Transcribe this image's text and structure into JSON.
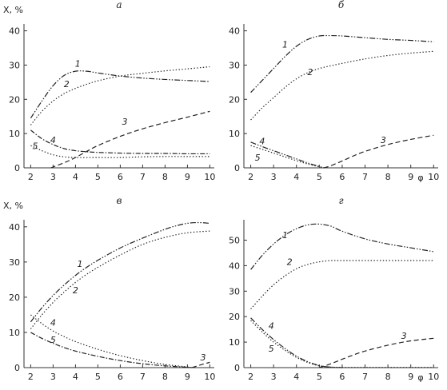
{
  "chart_data": [
    {
      "type": "line",
      "panel_label": "а",
      "ylabel": "X, %",
      "xlabel": "",
      "xlim": [
        1.7,
        10.2
      ],
      "ylim": [
        0,
        42
      ],
      "xticks": [
        2,
        3,
        4,
        5,
        6,
        7,
        8,
        9,
        10
      ],
      "yticks": [
        0,
        10,
        20,
        30,
        40
      ],
      "grid": false,
      "series": [
        {
          "name": "1",
          "style": "dashdotdot",
          "label_at": [
            4.1,
            30.5
          ],
          "x": [
            2,
            2.5,
            3,
            3.5,
            4,
            4.5,
            5,
            6,
            7,
            8,
            9,
            10
          ],
          "y": [
            14.5,
            19.5,
            24,
            27,
            28.2,
            28.2,
            27.7,
            26.8,
            26.2,
            25.8,
            25.5,
            25.2
          ]
        },
        {
          "name": "2",
          "style": "dotted",
          "label_at": [
            3.6,
            24.5
          ],
          "x": [
            2,
            2.5,
            3,
            3.5,
            4,
            4.5,
            5,
            6,
            7,
            8,
            9,
            10
          ],
          "y": [
            12.5,
            16.5,
            19.5,
            21.7,
            23.2,
            24.4,
            25.4,
            26.8,
            27.6,
            28.3,
            28.9,
            29.5
          ]
        },
        {
          "name": "3",
          "style": "dashed",
          "label_at": [
            6.2,
            13.5
          ],
          "x": [
            2.9,
            3.5,
            4,
            4.5,
            5,
            6,
            7,
            8,
            9,
            10
          ],
          "y": [
            0,
            1.5,
            3,
            4.8,
            6.5,
            9.2,
            11.4,
            13.2,
            14.8,
            16.5
          ]
        },
        {
          "name": "4",
          "style": "dashdot",
          "label_at": [
            3.0,
            8.2
          ],
          "x": [
            2,
            2.5,
            3,
            3.5,
            4,
            4.5,
            5,
            6,
            7,
            8,
            9,
            10
          ],
          "y": [
            11,
            8.5,
            6.8,
            5.6,
            5,
            4.7,
            4.5,
            4.3,
            4.2,
            4.2,
            4.1,
            4.1
          ]
        },
        {
          "name": "5",
          "style": "dotted",
          "label_at": [
            2.2,
            6.4
          ],
          "x": [
            2,
            2.5,
            3,
            3.5,
            4,
            5,
            6,
            7,
            8,
            9,
            10
          ],
          "y": [
            6.5,
            5,
            3.8,
            3.2,
            3.0,
            3.0,
            3.0,
            3.2,
            3.3,
            3.3,
            3.3
          ]
        }
      ]
    },
    {
      "type": "line",
      "panel_label": "б",
      "ylabel": "",
      "xlabel": "φ",
      "xlim": [
        1.7,
        10.2
      ],
      "ylim": [
        0,
        42
      ],
      "xticks": [
        2,
        3,
        4,
        5,
        6,
        7,
        8,
        9,
        10
      ],
      "yticks": [
        0,
        10,
        20,
        30,
        40
      ],
      "grid": false,
      "series": [
        {
          "name": "1",
          "style": "dashdotdot",
          "label_at": [
            3.5,
            36
          ],
          "x": [
            2,
            2.5,
            3,
            3.5,
            4,
            4.5,
            5,
            5.5,
            6,
            7,
            8,
            9,
            10
          ],
          "y": [
            22,
            25.5,
            29,
            32.5,
            35.5,
            37.5,
            38.5,
            38.6,
            38.5,
            38,
            37.5,
            37.2,
            36.8
          ]
        },
        {
          "name": "2",
          "style": "dotted",
          "label_at": [
            4.6,
            28
          ],
          "x": [
            2,
            2.5,
            3,
            3.5,
            4,
            4.5,
            5,
            5.5,
            6,
            7,
            8,
            9,
            10
          ],
          "y": [
            14,
            17.5,
            20.5,
            23.5,
            26,
            27.8,
            29,
            29.8,
            30.5,
            31.8,
            32.8,
            33.5,
            34
          ]
        },
        {
          "name": "3",
          "style": "dashed",
          "label_at": [
            7.8,
            8.2
          ],
          "x": [
            5.2,
            5.5,
            6,
            6.5,
            7,
            8,
            9,
            10
          ],
          "y": [
            0,
            0.6,
            2,
            3.5,
            4.8,
            6.8,
            8.3,
            9.5
          ]
        },
        {
          "name": "4",
          "style": "dashdotdot",
          "label_at": [
            2.5,
            7.8
          ],
          "x": [
            2,
            2.5,
            3,
            3.5,
            4,
            4.5,
            5,
            5.2
          ],
          "y": [
            7.5,
            6.2,
            5,
            3.8,
            2.6,
            1.4,
            0.4,
            0
          ]
        },
        {
          "name": "5",
          "style": "dotted",
          "label_at": [
            2.3,
            3.0
          ],
          "x": [
            2,
            2.5,
            3,
            3.5,
            4,
            4.5,
            5,
            5.2
          ],
          "y": [
            6.5,
            5.4,
            4.3,
            3.2,
            2.1,
            1.1,
            0.3,
            0
          ]
        }
      ]
    },
    {
      "type": "line",
      "panel_label": "в",
      "ylabel": "X, %",
      "xlabel": "",
      "xlim": [
        1.7,
        10.2
      ],
      "ylim": [
        0,
        42
      ],
      "xticks": [
        2,
        3,
        4,
        5,
        6,
        7,
        8,
        9,
        10
      ],
      "yticks": [
        0,
        10,
        20,
        30,
        40
      ],
      "grid": false,
      "series": [
        {
          "name": "1",
          "style": "dashdotdot",
          "label_at": [
            4.2,
            29.5
          ],
          "x": [
            2,
            2.5,
            3,
            3.5,
            4,
            4.5,
            5,
            6,
            7,
            8,
            8.5,
            9,
            9.5,
            10
          ],
          "y": [
            13,
            17,
            20.5,
            23.5,
            26.2,
            28.5,
            30.5,
            34,
            36.8,
            39.3,
            40.3,
            41,
            41.2,
            41
          ]
        },
        {
          "name": "2",
          "style": "dotted",
          "label_at": [
            4.0,
            22
          ],
          "x": [
            2,
            2.5,
            3,
            3.5,
            4,
            4.5,
            5,
            6,
            7,
            8,
            9,
            10
          ],
          "y": [
            11,
            15,
            18.5,
            21.5,
            24.2,
            26.5,
            28.5,
            32,
            35,
            37,
            38.3,
            38.8
          ]
        },
        {
          "name": "3",
          "style": "dashed",
          "label_at": [
            9.7,
            3.0
          ],
          "x": [
            9.2,
            9.6,
            10
          ],
          "y": [
            0,
            0.8,
            1.5
          ]
        },
        {
          "name": "4",
          "style": "dotted",
          "label_at": [
            3.0,
            12.8
          ],
          "x": [
            2,
            2.5,
            3,
            3.5,
            4,
            5,
            6,
            7,
            8,
            9,
            9.2
          ],
          "y": [
            15,
            12.5,
            10.4,
            8.8,
            7.4,
            5.2,
            3.4,
            2,
            0.9,
            0.2,
            0
          ]
        },
        {
          "name": "5",
          "style": "dashdot",
          "label_at": [
            3.0,
            8.0
          ],
          "x": [
            2,
            2.5,
            3,
            3.5,
            4,
            5,
            6,
            7,
            8,
            9,
            9.2
          ],
          "y": [
            10,
            8.3,
            6.9,
            5.7,
            4.7,
            3.2,
            2,
            1.1,
            0.5,
            0.1,
            0
          ]
        }
      ]
    },
    {
      "type": "line",
      "panel_label": "г",
      "ylabel": "",
      "xlabel": "φ",
      "xlim": [
        1.7,
        10.2
      ],
      "ylim": [
        0,
        58
      ],
      "xticks": [
        2,
        3,
        4,
        5,
        6,
        7,
        8,
        9,
        10
      ],
      "yticks": [
        0,
        10,
        20,
        30,
        40,
        50
      ],
      "grid": false,
      "series": [
        {
          "name": "1",
          "style": "dashdotdot",
          "label_at": [
            3.5,
            52
          ],
          "x": [
            2,
            2.5,
            3,
            3.5,
            4,
            4.5,
            5,
            5.5,
            6,
            7,
            8,
            9,
            10
          ],
          "y": [
            38.5,
            44,
            48.5,
            52,
            54.5,
            56,
            56.3,
            55.5,
            53.5,
            50.5,
            48.5,
            47,
            45.5
          ]
        },
        {
          "name": "2",
          "style": "dotted",
          "label_at": [
            3.7,
            41.5
          ],
          "x": [
            2,
            2.5,
            3,
            3.5,
            4,
            4.5,
            5,
            5.5,
            6,
            7,
            8,
            9,
            10
          ],
          "y": [
            23,
            28,
            32.5,
            36,
            38.8,
            40.5,
            41.5,
            42,
            42,
            42,
            42,
            42,
            42
          ]
        },
        {
          "name": "3",
          "style": "dashed",
          "label_at": [
            8.7,
            12.5
          ],
          "x": [
            5,
            5.5,
            6,
            6.5,
            7,
            8,
            9,
            10
          ],
          "y": [
            0,
            1.5,
            3.3,
            5,
            6.5,
            8.8,
            10.5,
            11.5
          ]
        },
        {
          "name": "4",
          "style": "dashdotdot",
          "label_at": [
            2.9,
            16.5
          ],
          "x": [
            2,
            2.5,
            3,
            3.5,
            4,
            4.5,
            5,
            5.5,
            6
          ],
          "y": [
            19.5,
            15,
            11,
            7.5,
            4.5,
            2.3,
            0.8,
            0.2,
            0
          ]
        },
        {
          "name": "5",
          "style": "dotted",
          "label_at": [
            2.9,
            7.5
          ],
          "x": [
            2,
            2.5,
            3,
            3.5,
            4,
            4.5,
            5,
            5.5,
            6,
            7,
            8,
            9,
            10
          ],
          "y": [
            18.5,
            14,
            10,
            6.8,
            4,
            2,
            0.7,
            0.2,
            0.1,
            0.1,
            0.1,
            0.1,
            0.1
          ]
        }
      ]
    }
  ]
}
